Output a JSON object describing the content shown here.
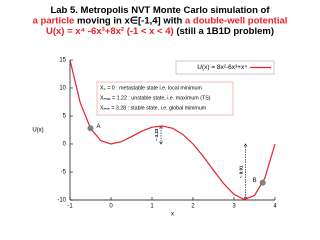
{
  "chart_data": {
    "type": "line",
    "title_lines": [
      [
        {
          "text": "Lab 5. Metropolis NVT Monte Carlo simulation of",
          "color": "#000000"
        }
      ],
      [
        {
          "text": "a particle",
          "color": "#e8202a"
        },
        {
          "text": " moving in x∈[-1,4] with ",
          "color": "#000000"
        },
        {
          "text": "a double-well potential",
          "color": "#e8202a"
        }
      ],
      [
        {
          "text": "U(x) = x⁴ -6x³+8x² (-1 < x < 4)",
          "color": "#e8202a"
        },
        {
          "text": " (still a 1B1D problem)",
          "color": "#000000"
        }
      ]
    ],
    "x_label": "x",
    "y_label": "U(x)",
    "x": [
      -1,
      -0.75,
      -0.5,
      -0.25,
      0,
      0.25,
      0.5,
      0.75,
      1,
      1.25,
      1.5,
      1.75,
      2,
      2.25,
      2.5,
      2.75,
      3,
      3.25,
      3.5,
      3.75,
      4
    ],
    "series": [
      {
        "name": "U(x) = 8x²-6x³+x⁴",
        "color": "#e8202a",
        "values": [
          15,
          7.35,
          2.81,
          0.6,
          0,
          0.41,
          1.31,
          2.29,
          3,
          3.22,
          2.81,
          1.72,
          0,
          -2.21,
          -4.69,
          -7.09,
          -9,
          -9.9,
          -9.19,
          -6.15,
          0
        ]
      }
    ],
    "xlim": [
      -1,
      4
    ],
    "xticks": [
      -1,
      0,
      1,
      2,
      3,
      4
    ],
    "ylim": [
      -10,
      15
    ],
    "yticks": [
      -10,
      -5,
      0,
      5,
      10,
      15
    ],
    "legend": "upper right",
    "notes": [
      "X₀ = 0 : metastable state i.e. local minimum",
      "Xₘₐₓ = 1.22 : unstable state, i.e. maximum (TS)",
      "Xₘᵢₙ = 3.28 : stable state, i.e. global minimum"
    ],
    "points": [
      {
        "label": "A",
        "x": -0.5,
        "y": 2.81,
        "color": "#808080"
      },
      {
        "label": "B",
        "x": 3.7,
        "y": -6.9,
        "color": "#808080"
      }
    ],
    "arrows": [
      {
        "label": "~ 3.23",
        "x": 1.22,
        "y": [
          0,
          3.23
        ]
      },
      {
        "label": "~ 9.91",
        "x": 3.28,
        "y": [
          0,
          -9.91
        ]
      }
    ]
  }
}
